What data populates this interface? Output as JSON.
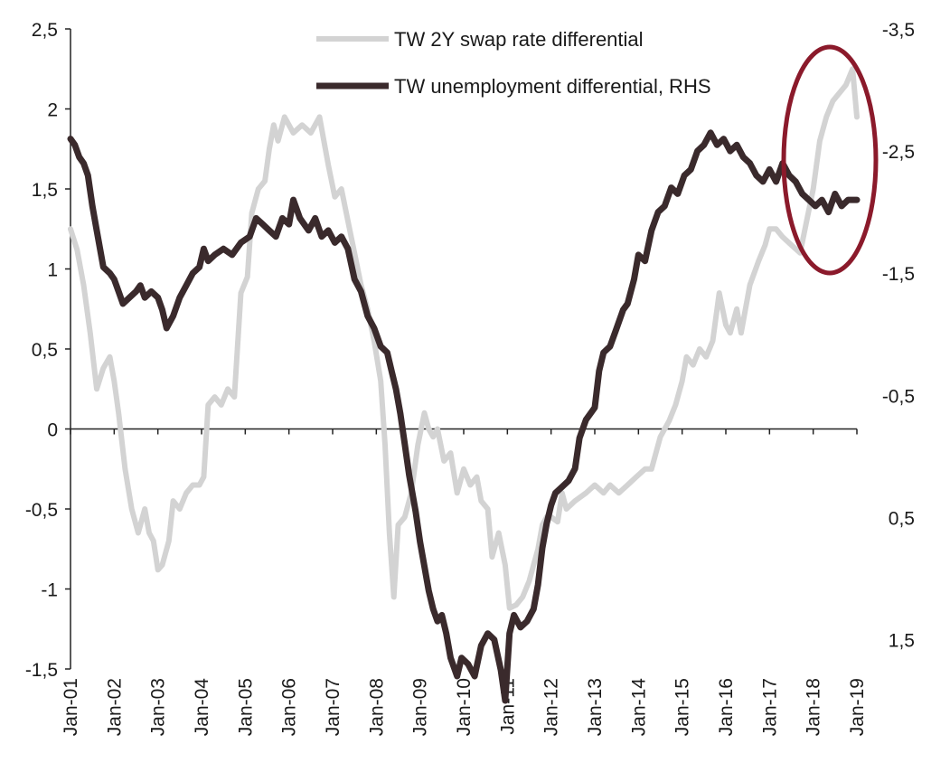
{
  "chart_data": {
    "type": "line",
    "title": "",
    "xlabel": "",
    "ylabel": "",
    "x_range": [
      2001.0,
      2019.0
    ],
    "x_tick_labels": [
      "Jan-01",
      "Jan-02",
      "Jan-03",
      "Jan-04",
      "Jan-05",
      "Jan-06",
      "Jan-07",
      "Jan-08",
      "Jan-09",
      "Jan-10",
      "Jan-11",
      "Jan-12",
      "Jan-13",
      "Jan-14",
      "Jan-15",
      "Jan-16",
      "Jan-17",
      "Jan-18",
      "Jan-19"
    ],
    "y_left": {
      "range": [
        -1.5,
        2.5
      ],
      "ticks": [
        2.5,
        2,
        1.5,
        1,
        0.5,
        0,
        -0.5,
        -1,
        -1.5
      ],
      "tick_labels": [
        "2,5",
        "2",
        "1,5",
        "1",
        "0,5",
        "0",
        "-0,5",
        "-1",
        "-1,5"
      ]
    },
    "y_right": {
      "range": [
        -3.5,
        2.0
      ],
      "inverted": true,
      "ticks": [
        -3.5,
        -2.5,
        -1.5,
        -0.5,
        0.5,
        1.5
      ],
      "tick_labels": [
        "-3,5",
        "-2,5",
        "-1,5",
        "-0,5",
        "0,5",
        "1,5"
      ]
    },
    "legend_position": "top-center",
    "grid": false,
    "series": [
      {
        "name": "TW 2Y swap rate differential",
        "axis": "left",
        "color": "#d3d3d3",
        "points": [
          [
            2001.0,
            1.25
          ],
          [
            2001.15,
            1.12
          ],
          [
            2001.3,
            0.9
          ],
          [
            2001.45,
            0.6
          ],
          [
            2001.6,
            0.25
          ],
          [
            2001.75,
            0.38
          ],
          [
            2001.9,
            0.45
          ],
          [
            2002.0,
            0.3
          ],
          [
            2002.1,
            0.1
          ],
          [
            2002.25,
            -0.25
          ],
          [
            2002.4,
            -0.5
          ],
          [
            2002.55,
            -0.65
          ],
          [
            2002.7,
            -0.5
          ],
          [
            2002.8,
            -0.65
          ],
          [
            2002.9,
            -0.7
          ],
          [
            2003.0,
            -0.88
          ],
          [
            2003.1,
            -0.85
          ],
          [
            2003.25,
            -0.7
          ],
          [
            2003.35,
            -0.45
          ],
          [
            2003.5,
            -0.5
          ],
          [
            2003.65,
            -0.4
          ],
          [
            2003.8,
            -0.35
          ],
          [
            2003.95,
            -0.35
          ],
          [
            2004.05,
            -0.3
          ],
          [
            2004.15,
            0.15
          ],
          [
            2004.3,
            0.2
          ],
          [
            2004.45,
            0.15
          ],
          [
            2004.6,
            0.25
          ],
          [
            2004.75,
            0.2
          ],
          [
            2004.9,
            0.85
          ],
          [
            2005.05,
            0.95
          ],
          [
            2005.15,
            1.35
          ],
          [
            2005.3,
            1.5
          ],
          [
            2005.45,
            1.55
          ],
          [
            2005.55,
            1.75
          ],
          [
            2005.65,
            1.9
          ],
          [
            2005.75,
            1.8
          ],
          [
            2005.9,
            1.95
          ],
          [
            2006.1,
            1.85
          ],
          [
            2006.3,
            1.9
          ],
          [
            2006.5,
            1.85
          ],
          [
            2006.7,
            1.95
          ],
          [
            2006.9,
            1.65
          ],
          [
            2007.05,
            1.45
          ],
          [
            2007.2,
            1.5
          ],
          [
            2007.35,
            1.3
          ],
          [
            2007.5,
            1.1
          ],
          [
            2007.65,
            0.9
          ],
          [
            2007.8,
            0.75
          ],
          [
            2007.95,
            0.55
          ],
          [
            2008.1,
            0.3
          ],
          [
            2008.2,
            -0.1
          ],
          [
            2008.3,
            -0.65
          ],
          [
            2008.4,
            -1.05
          ],
          [
            2008.5,
            -0.6
          ],
          [
            2008.65,
            -0.55
          ],
          [
            2008.8,
            -0.4
          ],
          [
            2008.95,
            -0.1
          ],
          [
            2009.1,
            0.1
          ],
          [
            2009.2,
            0.0
          ],
          [
            2009.3,
            -0.05
          ],
          [
            2009.4,
            0.0
          ],
          [
            2009.55,
            -0.2
          ],
          [
            2009.7,
            -0.15
          ],
          [
            2009.85,
            -0.4
          ],
          [
            2010.0,
            -0.25
          ],
          [
            2010.15,
            -0.35
          ],
          [
            2010.3,
            -0.3
          ],
          [
            2010.4,
            -0.45
          ],
          [
            2010.55,
            -0.5
          ],
          [
            2010.65,
            -0.8
          ],
          [
            2010.8,
            -0.65
          ],
          [
            2010.95,
            -0.85
          ],
          [
            2011.05,
            -1.12
          ],
          [
            2011.2,
            -1.1
          ],
          [
            2011.35,
            -1.05
          ],
          [
            2011.5,
            -0.95
          ],
          [
            2011.6,
            -0.85
          ],
          [
            2011.7,
            -0.75
          ],
          [
            2011.8,
            -0.6
          ],
          [
            2011.9,
            -0.55
          ],
          [
            2012.0,
            -0.55
          ],
          [
            2012.15,
            -0.58
          ],
          [
            2012.25,
            -0.4
          ],
          [
            2012.35,
            -0.5
          ],
          [
            2012.55,
            -0.45
          ],
          [
            2012.8,
            -0.4
          ],
          [
            2013.0,
            -0.35
          ],
          [
            2013.2,
            -0.4
          ],
          [
            2013.35,
            -0.35
          ],
          [
            2013.55,
            -0.4
          ],
          [
            2013.75,
            -0.35
          ],
          [
            2013.95,
            -0.3
          ],
          [
            2014.15,
            -0.25
          ],
          [
            2014.3,
            -0.25
          ],
          [
            2014.5,
            -0.05
          ],
          [
            2014.7,
            0.05
          ],
          [
            2014.85,
            0.15
          ],
          [
            2015.0,
            0.3
          ],
          [
            2015.1,
            0.45
          ],
          [
            2015.25,
            0.4
          ],
          [
            2015.4,
            0.5
          ],
          [
            2015.55,
            0.45
          ],
          [
            2015.7,
            0.55
          ],
          [
            2015.85,
            0.85
          ],
          [
            2016.0,
            0.65
          ],
          [
            2016.1,
            0.6
          ],
          [
            2016.25,
            0.75
          ],
          [
            2016.35,
            0.6
          ],
          [
            2016.55,
            0.9
          ],
          [
            2016.75,
            1.05
          ],
          [
            2016.9,
            1.15
          ],
          [
            2017.0,
            1.25
          ],
          [
            2017.15,
            1.25
          ],
          [
            2017.3,
            1.2
          ],
          [
            2017.5,
            1.15
          ],
          [
            2017.7,
            1.1
          ],
          [
            2017.85,
            1.3
          ],
          [
            2018.0,
            1.5
          ],
          [
            2018.15,
            1.8
          ],
          [
            2018.3,
            1.95
          ],
          [
            2018.45,
            2.05
          ],
          [
            2018.6,
            2.1
          ],
          [
            2018.75,
            2.15
          ],
          [
            2018.9,
            2.25
          ],
          [
            2019.0,
            1.95
          ]
        ]
      },
      {
        "name": "TW unemployment differential, RHS",
        "axis": "right",
        "color": "#3a2a2c",
        "points": [
          [
            2001.0,
            -2.6
          ],
          [
            2001.1,
            -2.55
          ],
          [
            2001.2,
            -2.45
          ],
          [
            2001.3,
            -2.4
          ],
          [
            2001.4,
            -2.3
          ],
          [
            2001.5,
            -2.05
          ],
          [
            2001.6,
            -1.85
          ],
          [
            2001.75,
            -1.55
          ],
          [
            2001.9,
            -1.5
          ],
          [
            2002.0,
            -1.45
          ],
          [
            2002.1,
            -1.35
          ],
          [
            2002.2,
            -1.25
          ],
          [
            2002.35,
            -1.3
          ],
          [
            2002.5,
            -1.35
          ],
          [
            2002.6,
            -1.4
          ],
          [
            2002.7,
            -1.3
          ],
          [
            2002.85,
            -1.35
          ],
          [
            2003.0,
            -1.3
          ],
          [
            2003.1,
            -1.2
          ],
          [
            2003.2,
            -1.05
          ],
          [
            2003.35,
            -1.15
          ],
          [
            2003.5,
            -1.3
          ],
          [
            2003.65,
            -1.4
          ],
          [
            2003.8,
            -1.5
          ],
          [
            2003.95,
            -1.55
          ],
          [
            2004.05,
            -1.7
          ],
          [
            2004.15,
            -1.6
          ],
          [
            2004.3,
            -1.65
          ],
          [
            2004.5,
            -1.7
          ],
          [
            2004.7,
            -1.65
          ],
          [
            2004.9,
            -1.75
          ],
          [
            2005.1,
            -1.8
          ],
          [
            2005.25,
            -1.95
          ],
          [
            2005.4,
            -1.9
          ],
          [
            2005.55,
            -1.85
          ],
          [
            2005.7,
            -1.8
          ],
          [
            2005.85,
            -1.95
          ],
          [
            2006.0,
            -1.9
          ],
          [
            2006.1,
            -2.1
          ],
          [
            2006.25,
            -1.95
          ],
          [
            2006.45,
            -1.85
          ],
          [
            2006.6,
            -1.95
          ],
          [
            2006.75,
            -1.8
          ],
          [
            2006.9,
            -1.85
          ],
          [
            2007.05,
            -1.75
          ],
          [
            2007.2,
            -1.8
          ],
          [
            2007.35,
            -1.7
          ],
          [
            2007.5,
            -1.45
          ],
          [
            2007.65,
            -1.35
          ],
          [
            2007.8,
            -1.15
          ],
          [
            2007.95,
            -1.05
          ],
          [
            2008.1,
            -0.9
          ],
          [
            2008.25,
            -0.85
          ],
          [
            2008.35,
            -0.7
          ],
          [
            2008.45,
            -0.55
          ],
          [
            2008.55,
            -0.35
          ],
          [
            2008.65,
            -0.1
          ],
          [
            2008.75,
            0.15
          ],
          [
            2008.9,
            0.45
          ],
          [
            2009.0,
            0.7
          ],
          [
            2009.1,
            0.9
          ],
          [
            2009.2,
            1.1
          ],
          [
            2009.3,
            1.25
          ],
          [
            2009.4,
            1.35
          ],
          [
            2009.5,
            1.3
          ],
          [
            2009.6,
            1.45
          ],
          [
            2009.7,
            1.65
          ],
          [
            2009.85,
            1.8
          ],
          [
            2009.95,
            1.65
          ],
          [
            2010.1,
            1.7
          ],
          [
            2010.25,
            1.8
          ],
          [
            2010.4,
            1.55
          ],
          [
            2010.55,
            1.45
          ],
          [
            2010.7,
            1.5
          ],
          [
            2010.85,
            1.75
          ],
          [
            2010.95,
            2.0
          ],
          [
            2011.05,
            1.45
          ],
          [
            2011.15,
            1.3
          ],
          [
            2011.3,
            1.4
          ],
          [
            2011.45,
            1.35
          ],
          [
            2011.6,
            1.25
          ],
          [
            2011.7,
            1.05
          ],
          [
            2011.8,
            0.75
          ],
          [
            2011.9,
            0.55
          ],
          [
            2012.0,
            0.4
          ],
          [
            2012.1,
            0.3
          ],
          [
            2012.25,
            0.25
          ],
          [
            2012.4,
            0.2
          ],
          [
            2012.55,
            0.1
          ],
          [
            2012.65,
            -0.15
          ],
          [
            2012.8,
            -0.3
          ],
          [
            2013.0,
            -0.4
          ],
          [
            2013.1,
            -0.7
          ],
          [
            2013.2,
            -0.85
          ],
          [
            2013.35,
            -0.9
          ],
          [
            2013.5,
            -1.05
          ],
          [
            2013.65,
            -1.2
          ],
          [
            2013.75,
            -1.25
          ],
          [
            2013.9,
            -1.45
          ],
          [
            2014.0,
            -1.65
          ],
          [
            2014.15,
            -1.6
          ],
          [
            2014.3,
            -1.85
          ],
          [
            2014.45,
            -2.0
          ],
          [
            2014.6,
            -2.05
          ],
          [
            2014.75,
            -2.2
          ],
          [
            2014.9,
            -2.15
          ],
          [
            2015.05,
            -2.3
          ],
          [
            2015.2,
            -2.35
          ],
          [
            2015.35,
            -2.5
          ],
          [
            2015.5,
            -2.55
          ],
          [
            2015.65,
            -2.65
          ],
          [
            2015.8,
            -2.55
          ],
          [
            2015.95,
            -2.6
          ],
          [
            2016.1,
            -2.5
          ],
          [
            2016.25,
            -2.55
          ],
          [
            2016.4,
            -2.45
          ],
          [
            2016.55,
            -2.4
          ],
          [
            2016.7,
            -2.3
          ],
          [
            2016.85,
            -2.25
          ],
          [
            2017.0,
            -2.35
          ],
          [
            2017.15,
            -2.25
          ],
          [
            2017.3,
            -2.4
          ],
          [
            2017.45,
            -2.3
          ],
          [
            2017.6,
            -2.25
          ],
          [
            2017.75,
            -2.15
          ],
          [
            2017.9,
            -2.1
          ],
          [
            2018.05,
            -2.05
          ],
          [
            2018.2,
            -2.1
          ],
          [
            2018.35,
            -2.0
          ],
          [
            2018.5,
            -2.15
          ],
          [
            2018.65,
            -2.05
          ],
          [
            2018.8,
            -2.1
          ],
          [
            2019.0,
            -2.1
          ]
        ]
      }
    ]
  },
  "annotation": {
    "shape": "ellipse",
    "color": "#8b1a2b"
  }
}
